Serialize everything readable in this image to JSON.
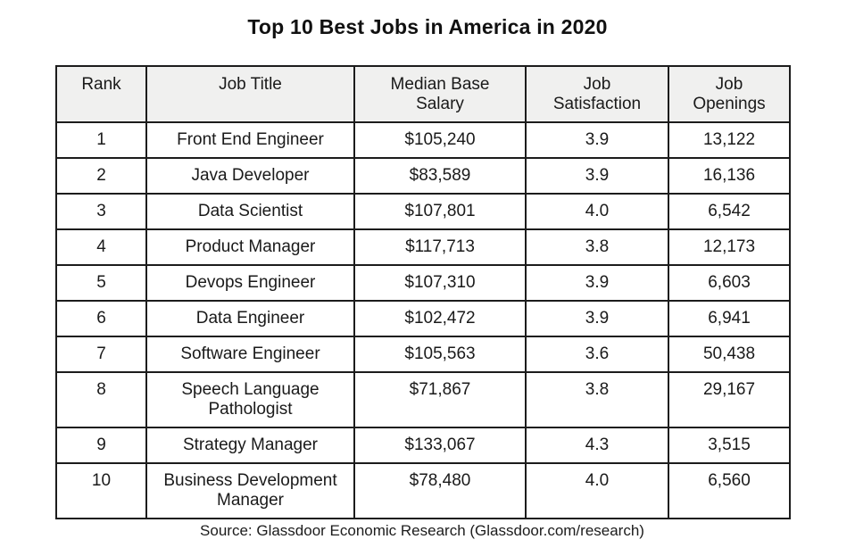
{
  "title": "Top 10 Best Jobs in America in 2020",
  "source_note": "Source: Glassdoor Economic Research (Glassdoor.com/research)",
  "colors": {
    "header_background": "#f0f0ef",
    "table_border": "#1c1c1c",
    "text": "#1a1a1a",
    "page_background": "#ffffff"
  },
  "table": {
    "columns": [
      "Rank",
      "Job Title",
      "Median Base\nSalary",
      "Job\nSatisfaction",
      "Job\nOpenings"
    ],
    "rows": [
      [
        "1",
        "Front End Engineer",
        "$105,240",
        "3.9",
        "13,122"
      ],
      [
        "2",
        "Java Developer",
        "$83,589",
        "3.9",
        "16,136"
      ],
      [
        "3",
        "Data Scientist",
        "$107,801",
        "4.0",
        "6,542"
      ],
      [
        "4",
        "Product Manager",
        "$117,713",
        "3.8",
        "12,173"
      ],
      [
        "5",
        "Devops Engineer",
        "$107,310",
        "3.9",
        "6,603"
      ],
      [
        "6",
        "Data Engineer",
        "$102,472",
        "3.9",
        "6,941"
      ],
      [
        "7",
        "Software Engineer",
        "$105,563",
        "3.6",
        "50,438"
      ],
      [
        "8",
        "Speech Language\nPathologist",
        "$71,867",
        "3.8",
        "29,167"
      ],
      [
        "9",
        "Strategy Manager",
        "$133,067",
        "4.3",
        "3,515"
      ],
      [
        "10",
        "Business Development\nManager",
        "$78,480",
        "4.0",
        "6,560"
      ]
    ]
  },
  "chart_data": {
    "type": "table",
    "title": "Top 10 Best Jobs in America in 2020",
    "columns": [
      "Rank",
      "Job Title",
      "Median Base Salary",
      "Job Satisfaction",
      "Job Openings"
    ],
    "rows": [
      [
        1,
        "Front End Engineer",
        105240,
        3.9,
        13122
      ],
      [
        2,
        "Java Developer",
        83589,
        3.9,
        16136
      ],
      [
        3,
        "Data Scientist",
        107801,
        4.0,
        6542
      ],
      [
        4,
        "Product Manager",
        117713,
        3.8,
        12173
      ],
      [
        5,
        "Devops Engineer",
        107310,
        3.9,
        6603
      ],
      [
        6,
        "Data Engineer",
        102472,
        3.9,
        6941
      ],
      [
        7,
        "Software Engineer",
        105563,
        3.6,
        50438
      ],
      [
        8,
        "Speech Language Pathologist",
        71867,
        3.8,
        29167
      ],
      [
        9,
        "Strategy Manager",
        133067,
        4.3,
        3515
      ],
      [
        10,
        "Business Development Manager",
        78480,
        4.0,
        6560
      ]
    ],
    "salary_unit": "USD",
    "source": "Source: Glassdoor Economic Research (Glassdoor.com/research)"
  }
}
